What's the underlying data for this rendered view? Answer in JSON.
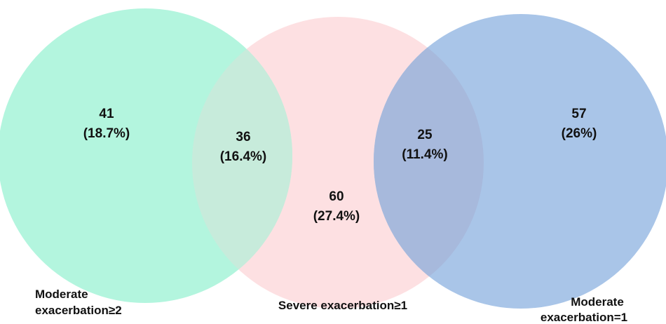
{
  "sets": [
    {
      "id": "A",
      "label_lines": [
        "Moderate",
        "exacerbation≥2"
      ],
      "color": "#b3f5de"
    },
    {
      "id": "B",
      "label_lines": [
        "Severe exacerbation≥1"
      ],
      "color": "#fde0e2"
    },
    {
      "id": "C",
      "label_lines": [
        "Moderate",
        "exacerbation=1"
      ],
      "color": "#a9c5e8"
    }
  ],
  "regions": [
    {
      "sets": [
        "A"
      ],
      "count": "41",
      "percent": "(18.7%)"
    },
    {
      "sets": [
        "A",
        "B"
      ],
      "count": "36",
      "percent": "(16.4%)"
    },
    {
      "sets": [
        "B"
      ],
      "count": "60",
      "percent": "(27.4%)"
    },
    {
      "sets": [
        "B",
        "C"
      ],
      "count": "25",
      "percent": "(11.4%)"
    },
    {
      "sets": [
        "C"
      ],
      "count": "57",
      "percent": "(26%)"
    }
  ]
}
